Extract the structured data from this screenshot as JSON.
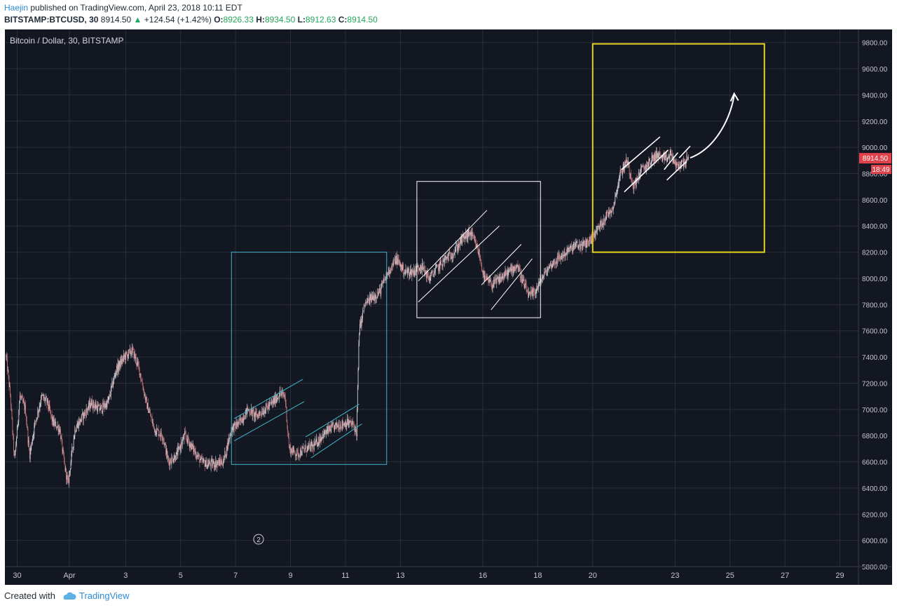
{
  "header": {
    "author": "Haejin",
    "published_text": " published on TradingView.com, April 23, 2018 10:11 EDT",
    "symbol": "BITSTAMP:BTCUSD, 30",
    "last_price": "8914.50",
    "change": "+124.54 (+1.42%)",
    "o_label": "O:",
    "o_value": "8926.33",
    "h_label": "H:",
    "h_value": "8934.50",
    "l_label": "L:",
    "l_value": "8912.63",
    "c_label": "C:",
    "c_value": "8914.50"
  },
  "footer": {
    "created_with": "Created with",
    "brand": "TradingView"
  },
  "colors": {
    "background": "#131722",
    "grid": "#2a2e39",
    "axis_text": "#c3c6ce",
    "candle_up": "#d5d9de",
    "candle_down": "#c8757b",
    "box_cyan": "#3fb6c8",
    "box_white": "#ffffff",
    "box_yellow": "#e6d21f",
    "price_tag": "#e0424b"
  },
  "chart_data": {
    "type": "candlestick",
    "title": "Bitcoin / Dollar, 30, BITSTAMP",
    "ylim": [
      5800,
      9900
    ],
    "y_ticks": [
      "9800.00",
      "9600.00",
      "9400.00",
      "9200.00",
      "9000.00",
      "8800.00",
      "8600.00",
      "8400.00",
      "8200.00",
      "8000.00",
      "7800.00",
      "7600.00",
      "7400.00",
      "7200.00",
      "7000.00",
      "6800.00",
      "6600.00",
      "6400.00",
      "6200.00",
      "6000.00",
      "5800.00"
    ],
    "x_labels": [
      "30",
      "Apr",
      "3",
      "5",
      "7",
      "9",
      "11",
      "13",
      "16",
      "18",
      "20",
      "23",
      "25",
      "27",
      "29"
    ],
    "x_label_days": [
      -1.9,
      0,
      2.05,
      4.05,
      6.05,
      8.05,
      10.05,
      12.05,
      15.05,
      17.05,
      19.05,
      22.05,
      24.05,
      26.05,
      28.05
    ],
    "last_price_label": "8914.50",
    "countdown_label": "18:49",
    "last_price": 8914.5,
    "path": [
      [
        -2.3,
        7400
      ],
      [
        -2.15,
        7100
      ],
      [
        -2.0,
        6600
      ],
      [
        -1.8,
        7100
      ],
      [
        -1.6,
        7000
      ],
      [
        -1.45,
        6650
      ],
      [
        -1.25,
        6900
      ],
      [
        -1.0,
        7100
      ],
      [
        -0.8,
        7050
      ],
      [
        -0.6,
        6900
      ],
      [
        -0.35,
        6850
      ],
      [
        -0.2,
        6600
      ],
      [
        -0.05,
        6430
      ],
      [
        0.2,
        6850
      ],
      [
        0.5,
        6950
      ],
      [
        0.8,
        7050
      ],
      [
        1.1,
        7000
      ],
      [
        1.4,
        7050
      ],
      [
        1.7,
        7300
      ],
      [
        2.0,
        7400
      ],
      [
        2.3,
        7450
      ],
      [
        2.55,
        7300
      ],
      [
        2.8,
        7050
      ],
      [
        3.1,
        6850
      ],
      [
        3.4,
        6800
      ],
      [
        3.6,
        6600
      ],
      [
        3.9,
        6650
      ],
      [
        4.2,
        6800
      ],
      [
        4.5,
        6700
      ],
      [
        4.8,
        6600
      ],
      [
        5.05,
        6580
      ],
      [
        5.35,
        6590
      ],
      [
        5.6,
        6600
      ],
      [
        5.9,
        6850
      ],
      [
        6.2,
        6900
      ],
      [
        6.5,
        7000
      ],
      [
        6.8,
        6950
      ],
      [
        7.1,
        7000
      ],
      [
        7.4,
        7050
      ],
      [
        7.65,
        7120
      ],
      [
        7.85,
        7100
      ],
      [
        8.0,
        6700
      ],
      [
        8.3,
        6660
      ],
      [
        8.6,
        6700
      ],
      [
        8.9,
        6720
      ],
      [
        9.2,
        6800
      ],
      [
        9.5,
        6850
      ],
      [
        9.8,
        6880
      ],
      [
        10.1,
        6900
      ],
      [
        10.35,
        6880
      ],
      [
        10.45,
        6820
      ],
      [
        10.55,
        7600
      ],
      [
        10.75,
        7800
      ],
      [
        11.0,
        7850
      ],
      [
        11.3,
        7900
      ],
      [
        11.6,
        8050
      ],
      [
        11.9,
        8150
      ],
      [
        12.2,
        8050
      ],
      [
        12.5,
        8050
      ],
      [
        12.8,
        8100
      ],
      [
        13.1,
        8000
      ],
      [
        13.4,
        8080
      ],
      [
        13.7,
        8150
      ],
      [
        14.0,
        8200
      ],
      [
        14.3,
        8300
      ],
      [
        14.6,
        8350
      ],
      [
        14.9,
        8200
      ],
      [
        15.1,
        8000
      ],
      [
        15.4,
        7950
      ],
      [
        15.7,
        8000
      ],
      [
        16.0,
        8050
      ],
      [
        16.3,
        8100
      ],
      [
        16.55,
        7950
      ],
      [
        16.75,
        7860
      ],
      [
        16.95,
        7900
      ],
      [
        17.2,
        8000
      ],
      [
        17.5,
        8100
      ],
      [
        17.8,
        8150
      ],
      [
        18.1,
        8200
      ],
      [
        18.4,
        8250
      ],
      [
        18.7,
        8250
      ],
      [
        19.0,
        8300
      ],
      [
        19.3,
        8400
      ],
      [
        19.55,
        8480
      ],
      [
        19.8,
        8550
      ],
      [
        20.05,
        8800
      ],
      [
        20.3,
        8900
      ],
      [
        20.55,
        8700
      ],
      [
        20.8,
        8820
      ],
      [
        21.1,
        8880
      ],
      [
        21.4,
        8950
      ],
      [
        21.7,
        8900
      ],
      [
        21.9,
        8950
      ],
      [
        22.1,
        8850
      ],
      [
        22.3,
        8880
      ],
      [
        22.55,
        8914.5
      ]
    ]
  }
}
